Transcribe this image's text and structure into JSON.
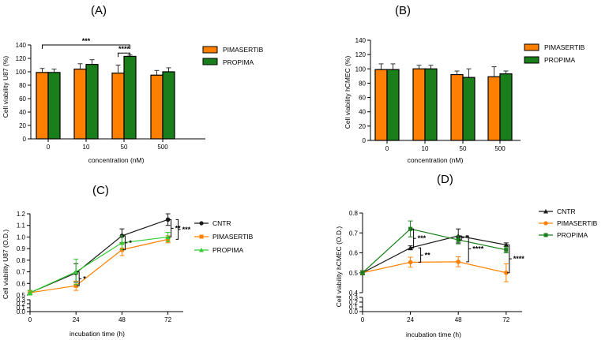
{
  "colors": {
    "orange": "#ff8000",
    "green": "#1a7f1a",
    "black": "#1a1a1a",
    "light_green": "#33cc33",
    "err": "#333333"
  },
  "chart_data": [
    {
      "id": "A",
      "panel_label": "(A)",
      "type": "bar",
      "categories": [
        "0",
        "10",
        "50",
        "500"
      ],
      "series": [
        {
          "name": "PIMASERTIB",
          "color": "#ff8000",
          "values": [
            99,
            104,
            98,
            95
          ],
          "errors": [
            6,
            8,
            12,
            7
          ]
        },
        {
          "name": "PROPIMA",
          "color": "#1a7f1a",
          "values": [
            99,
            111,
            123,
            100
          ],
          "errors": [
            5,
            7,
            2,
            6
          ]
        }
      ],
      "xlabel": "concentration (nM)",
      "ylabel": "Cell viability U87  (%)",
      "ylim": [
        0,
        140
      ],
      "yticks": [
        0,
        20,
        40,
        60,
        80,
        100,
        120,
        140
      ],
      "significance": [
        {
          "label": "***",
          "from": [
            "0",
            "PIMASERTIB"
          ],
          "to": [
            "50",
            "PROPIMA"
          ],
          "y": 140
        },
        {
          "label": "****",
          "from": [
            "50",
            "PIMASERTIB"
          ],
          "to": [
            "50",
            "PROPIMA"
          ],
          "y": 128
        }
      ]
    },
    {
      "id": "B",
      "panel_label": "(B)",
      "type": "bar",
      "categories": [
        "0",
        "10",
        "50",
        "500"
      ],
      "series": [
        {
          "name": "PIMASERTIB",
          "color": "#ff8000",
          "values": [
            99,
            100,
            92,
            89
          ],
          "errors": [
            8,
            5,
            5,
            14
          ]
        },
        {
          "name": "PROPIMA",
          "color": "#1a7f1a",
          "values": [
            99,
            100,
            88,
            93
          ],
          "errors": [
            8,
            5,
            12,
            4
          ]
        }
      ],
      "xlabel": "concentration (nM)",
      "ylabel": "Cell viability hCMEC  (%)",
      "ylim": [
        0,
        140
      ],
      "yticks": [
        0,
        20,
        40,
        60,
        80,
        100,
        120,
        140
      ],
      "significance": []
    },
    {
      "id": "C",
      "panel_label": "(C)",
      "type": "line",
      "x": [
        0,
        24,
        48,
        72
      ],
      "series": [
        {
          "name": "CNTR",
          "color": "#1a1a1a",
          "marker": "circle",
          "values": [
            0.52,
            0.69,
            1.01,
            1.15
          ],
          "errors": [
            0.02,
            0.08,
            0.06,
            0.05
          ]
        },
        {
          "name": "PIMASERTIB",
          "color": "#ff8000",
          "marker": "square",
          "values": [
            0.52,
            0.58,
            0.89,
            0.98
          ],
          "errors": [
            0.02,
            0.04,
            0.05,
            0.03
          ]
        },
        {
          "name": "PROPIMA",
          "color": "#33cc33",
          "marker": "triangle",
          "values": [
            0.52,
            0.7,
            0.95,
            1.0
          ],
          "errors": [
            0.02,
            0.11,
            0.06,
            0.04
          ]
        }
      ],
      "xlabel": "incubation time (h)",
      "ylabel": "Cell viability U87  (O.D.)",
      "xlim": [
        0,
        80
      ],
      "xticks": [
        0,
        24,
        48,
        72
      ],
      "ylim": [
        0.0,
        1.2
      ],
      "yticks_low": [
        "0.0",
        "0.1",
        "0.2",
        "0.3"
      ],
      "yticks": [
        "0.5",
        "0.6",
        "0.7",
        "0.8",
        "0.9",
        "1.0",
        "1.1",
        "1.2"
      ],
      "significance": [
        {
          "label": "*",
          "x": 24,
          "y1": 0.58,
          "y2": 0.7,
          "level": 0
        },
        {
          "label": "*",
          "x": 48,
          "y1": 0.89,
          "y2": 1.01,
          "level": 0
        },
        {
          "label": "**",
          "x": 72,
          "y1": 1.0,
          "y2": 1.15,
          "level": 0
        },
        {
          "label": "***",
          "x": 72,
          "y1": 0.98,
          "y2": 1.15,
          "level": 1
        }
      ]
    },
    {
      "id": "D",
      "panel_label": "(D)",
      "type": "line",
      "x": [
        0,
        24,
        48,
        72
      ],
      "series": [
        {
          "name": "CNTR",
          "color": "#1a1a1a",
          "marker": "triangle",
          "values": [
            0.5,
            0.625,
            0.685,
            0.64
          ],
          "errors": [
            0.01,
            0.01,
            0.035,
            0.01
          ]
        },
        {
          "name": "PIMASERTIB",
          "color": "#ff8000",
          "marker": "circle",
          "values": [
            0.5,
            0.553,
            0.555,
            0.5
          ],
          "errors": [
            0.01,
            0.025,
            0.025,
            0.045
          ]
        },
        {
          "name": "PROPIMA",
          "color": "#1a7f1a",
          "marker": "square",
          "values": [
            0.5,
            0.72,
            0.665,
            0.615
          ],
          "errors": [
            0.01,
            0.04,
            0.02,
            0.015
          ]
        }
      ],
      "xlabel": "incubation time (h)",
      "ylabel": "Cell viability hCMEC  (O.D.)",
      "xlim": [
        0,
        80
      ],
      "xticks": [
        0,
        24,
        48,
        72
      ],
      "ylim": [
        0.0,
        0.8
      ],
      "yticks_low": [
        "0.0",
        "0.1",
        "0.2",
        "0.3"
      ],
      "yticks": [
        "0.4",
        "0.5",
        "0.6",
        "0.7",
        "0.8"
      ],
      "significance": [
        {
          "label": "***",
          "x": 24,
          "y1": 0.625,
          "y2": 0.72,
          "level": 0
        },
        {
          "label": "**",
          "x": 24,
          "y1": 0.553,
          "y2": 0.625,
          "level": 1
        },
        {
          "label": "*",
          "x": 48,
          "y1": 0.665,
          "y2": 0.685,
          "level": 0
        },
        {
          "label": "****",
          "x": 48,
          "y1": 0.555,
          "y2": 0.685,
          "level": 1
        },
        {
          "label": "****",
          "x": 72,
          "y1": 0.5,
          "y2": 0.64,
          "level": 0
        }
      ]
    }
  ]
}
